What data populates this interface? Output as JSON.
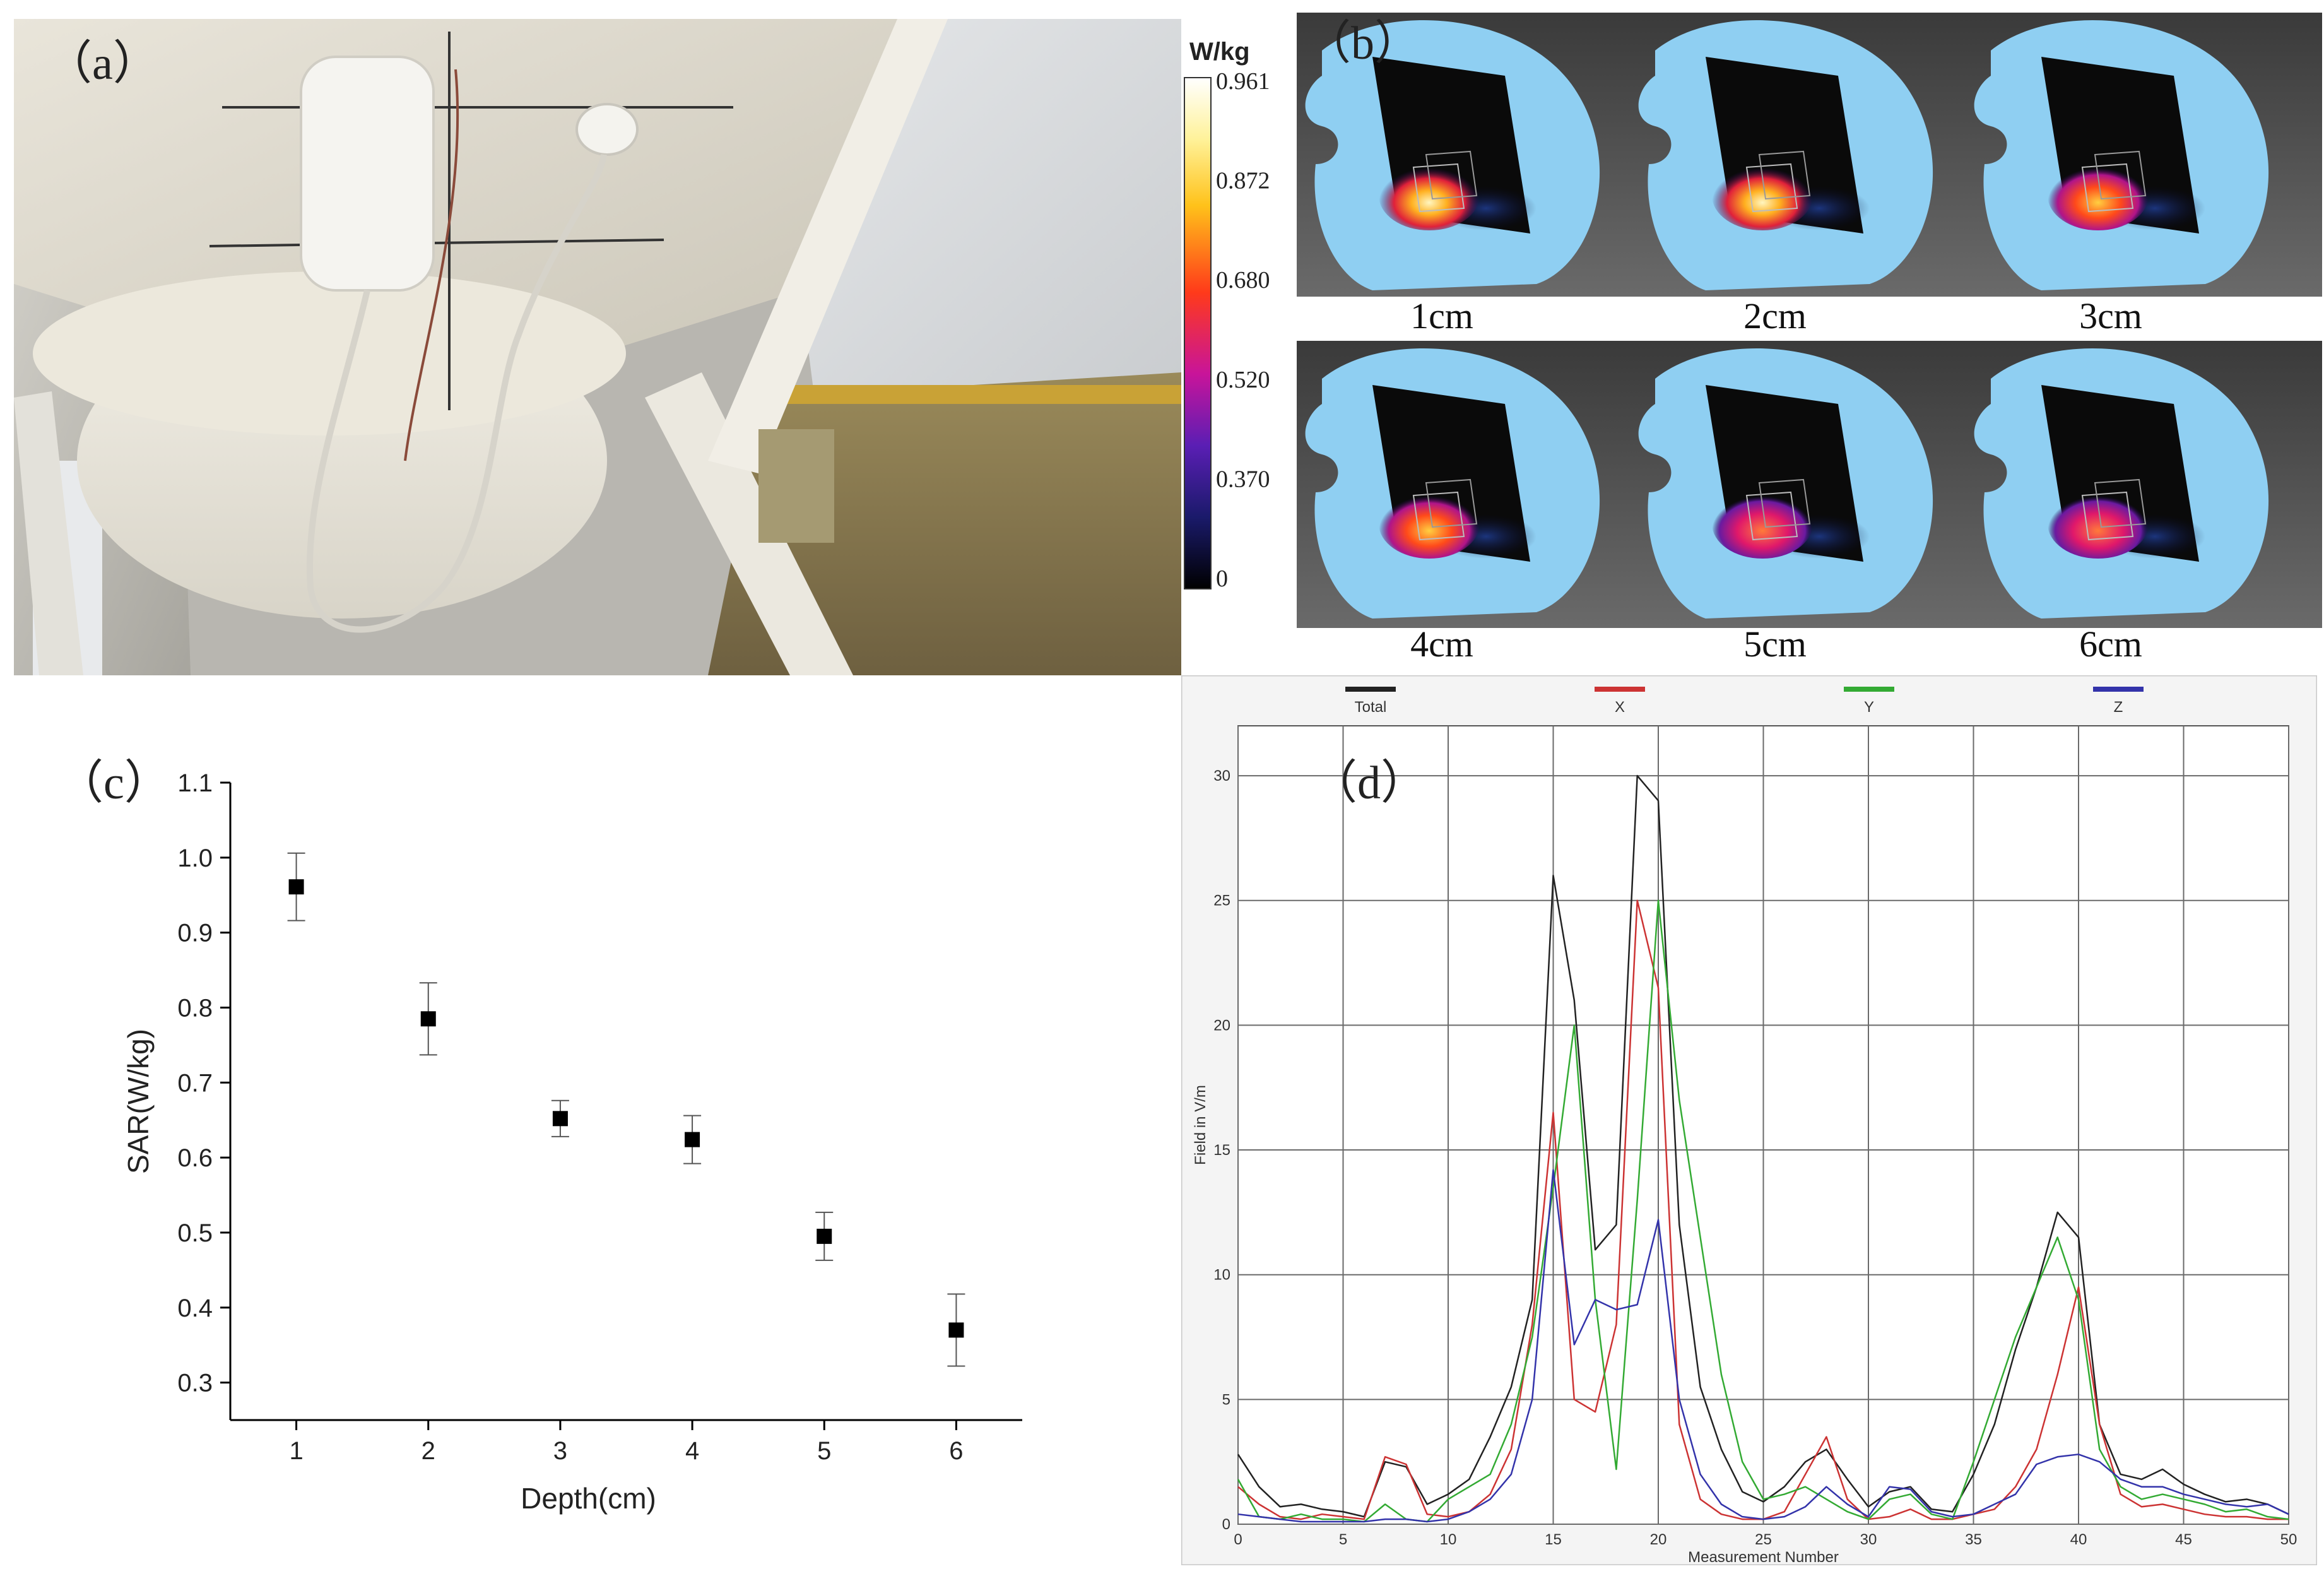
{
  "panels": {
    "a": {
      "tag": "（a）"
    },
    "b": {
      "tag": "（b）",
      "scale_unit": "W/kg",
      "scale_ticks": [
        "0.961",
        "0.872",
        "0.680",
        "0.520",
        "0.370",
        "0"
      ],
      "depth_labels": [
        "1cm",
        "2cm",
        "3cm",
        "4cm",
        "5cm",
        "6cm"
      ]
    },
    "c": {
      "tag": "（c）"
    },
    "d": {
      "tag": "（d）"
    }
  },
  "chart_data": [
    {
      "id": "c",
      "type": "scatter",
      "xlabel": "Depth(cm)",
      "ylabel": "SAR(W/kg)",
      "xlim": [
        0.5,
        6.5
      ],
      "ylim": [
        0.25,
        1.1
      ],
      "xticks": [
        "1",
        "2",
        "3",
        "4",
        "5",
        "6"
      ],
      "yticks": [
        "0.3",
        "0.4",
        "0.5",
        "0.6",
        "0.7",
        "0.8",
        "0.9",
        "1.0",
        "1.1"
      ],
      "x": [
        1,
        2,
        3,
        4,
        5,
        6
      ],
      "y": [
        0.961,
        0.785,
        0.652,
        0.624,
        0.495,
        0.37
      ],
      "err": [
        0.045,
        0.048,
        0.024,
        0.032,
        0.032,
        0.048
      ],
      "grid": false
    },
    {
      "id": "d",
      "type": "line",
      "xlabel": "Measurement Number",
      "ylabel": "Field in V/m",
      "xlim": [
        0,
        50
      ],
      "ylim": [
        0,
        32
      ],
      "xticks": [
        "0",
        "5",
        "10",
        "15",
        "20",
        "25",
        "30",
        "35",
        "40",
        "45",
        "50"
      ],
      "yticks": [
        "0",
        "5",
        "10",
        "15",
        "20",
        "25",
        "30"
      ],
      "grid": true,
      "legend_position": "top",
      "series": [
        {
          "name": "Total",
          "color": "#222222",
          "values": [
            2.8,
            1.5,
            0.7,
            0.8,
            0.6,
            0.5,
            0.3,
            2.5,
            2.3,
            0.8,
            1.2,
            1.8,
            3.5,
            5.5,
            9,
            26,
            21,
            11,
            12,
            30,
            29,
            12,
            5.5,
            3,
            1.3,
            0.9,
            1.5,
            2.5,
            3,
            1.8,
            0.7,
            1.3,
            1.5,
            0.6,
            0.5,
            2,
            4,
            7,
            9.5,
            12.5,
            11.5,
            4,
            2,
            1.8,
            2.2,
            1.6,
            1.2,
            0.9,
            1,
            0.8,
            0.4
          ]
        },
        {
          "name": "X",
          "color": "#cc3333",
          "values": [
            1.5,
            0.8,
            0.3,
            0.2,
            0.4,
            0.3,
            0.2,
            2.7,
            2.4,
            0.4,
            0.3,
            0.5,
            1.2,
            3,
            8,
            16.5,
            5,
            4.5,
            8,
            25,
            21.5,
            4,
            1,
            0.4,
            0.2,
            0.2,
            0.5,
            2,
            3.5,
            1,
            0.2,
            0.3,
            0.6,
            0.2,
            0.2,
            0.4,
            0.6,
            1.5,
            3,
            6,
            9.5,
            4,
            1.2,
            0.7,
            0.8,
            0.6,
            0.4,
            0.3,
            0.3,
            0.2,
            0.2
          ]
        },
        {
          "name": "Y",
          "color": "#33aa33",
          "values": [
            1.8,
            0.3,
            0.2,
            0.4,
            0.2,
            0.2,
            0.1,
            0.8,
            0.2,
            0.1,
            1,
            1.5,
            2,
            4,
            7.5,
            13.5,
            20,
            9,
            2.2,
            13,
            25,
            17,
            11.5,
            6,
            2.5,
            1,
            1.2,
            1.5,
            1,
            0.5,
            0.2,
            1,
            1.2,
            0.4,
            0.2,
            2.5,
            5,
            7.5,
            9.5,
            11.5,
            9,
            3,
            1.5,
            1,
            1.2,
            1,
            0.8,
            0.5,
            0.6,
            0.3,
            0.2
          ]
        },
        {
          "name": "Z",
          "color": "#3333aa",
          "values": [
            0.4,
            0.3,
            0.2,
            0.1,
            0.1,
            0.1,
            0.1,
            0.2,
            0.2,
            0.1,
            0.2,
            0.5,
            1,
            2,
            5,
            14.2,
            7.2,
            9,
            8.6,
            8.8,
            12.2,
            5,
            2,
            0.8,
            0.3,
            0.2,
            0.3,
            0.7,
            1.5,
            0.8,
            0.3,
            1.5,
            1.4,
            0.5,
            0.3,
            0.4,
            0.8,
            1.2,
            2.4,
            2.7,
            2.8,
            2.5,
            1.8,
            1.5,
            1.5,
            1.2,
            1,
            0.8,
            0.7,
            0.8,
            0.4
          ]
        }
      ]
    }
  ]
}
